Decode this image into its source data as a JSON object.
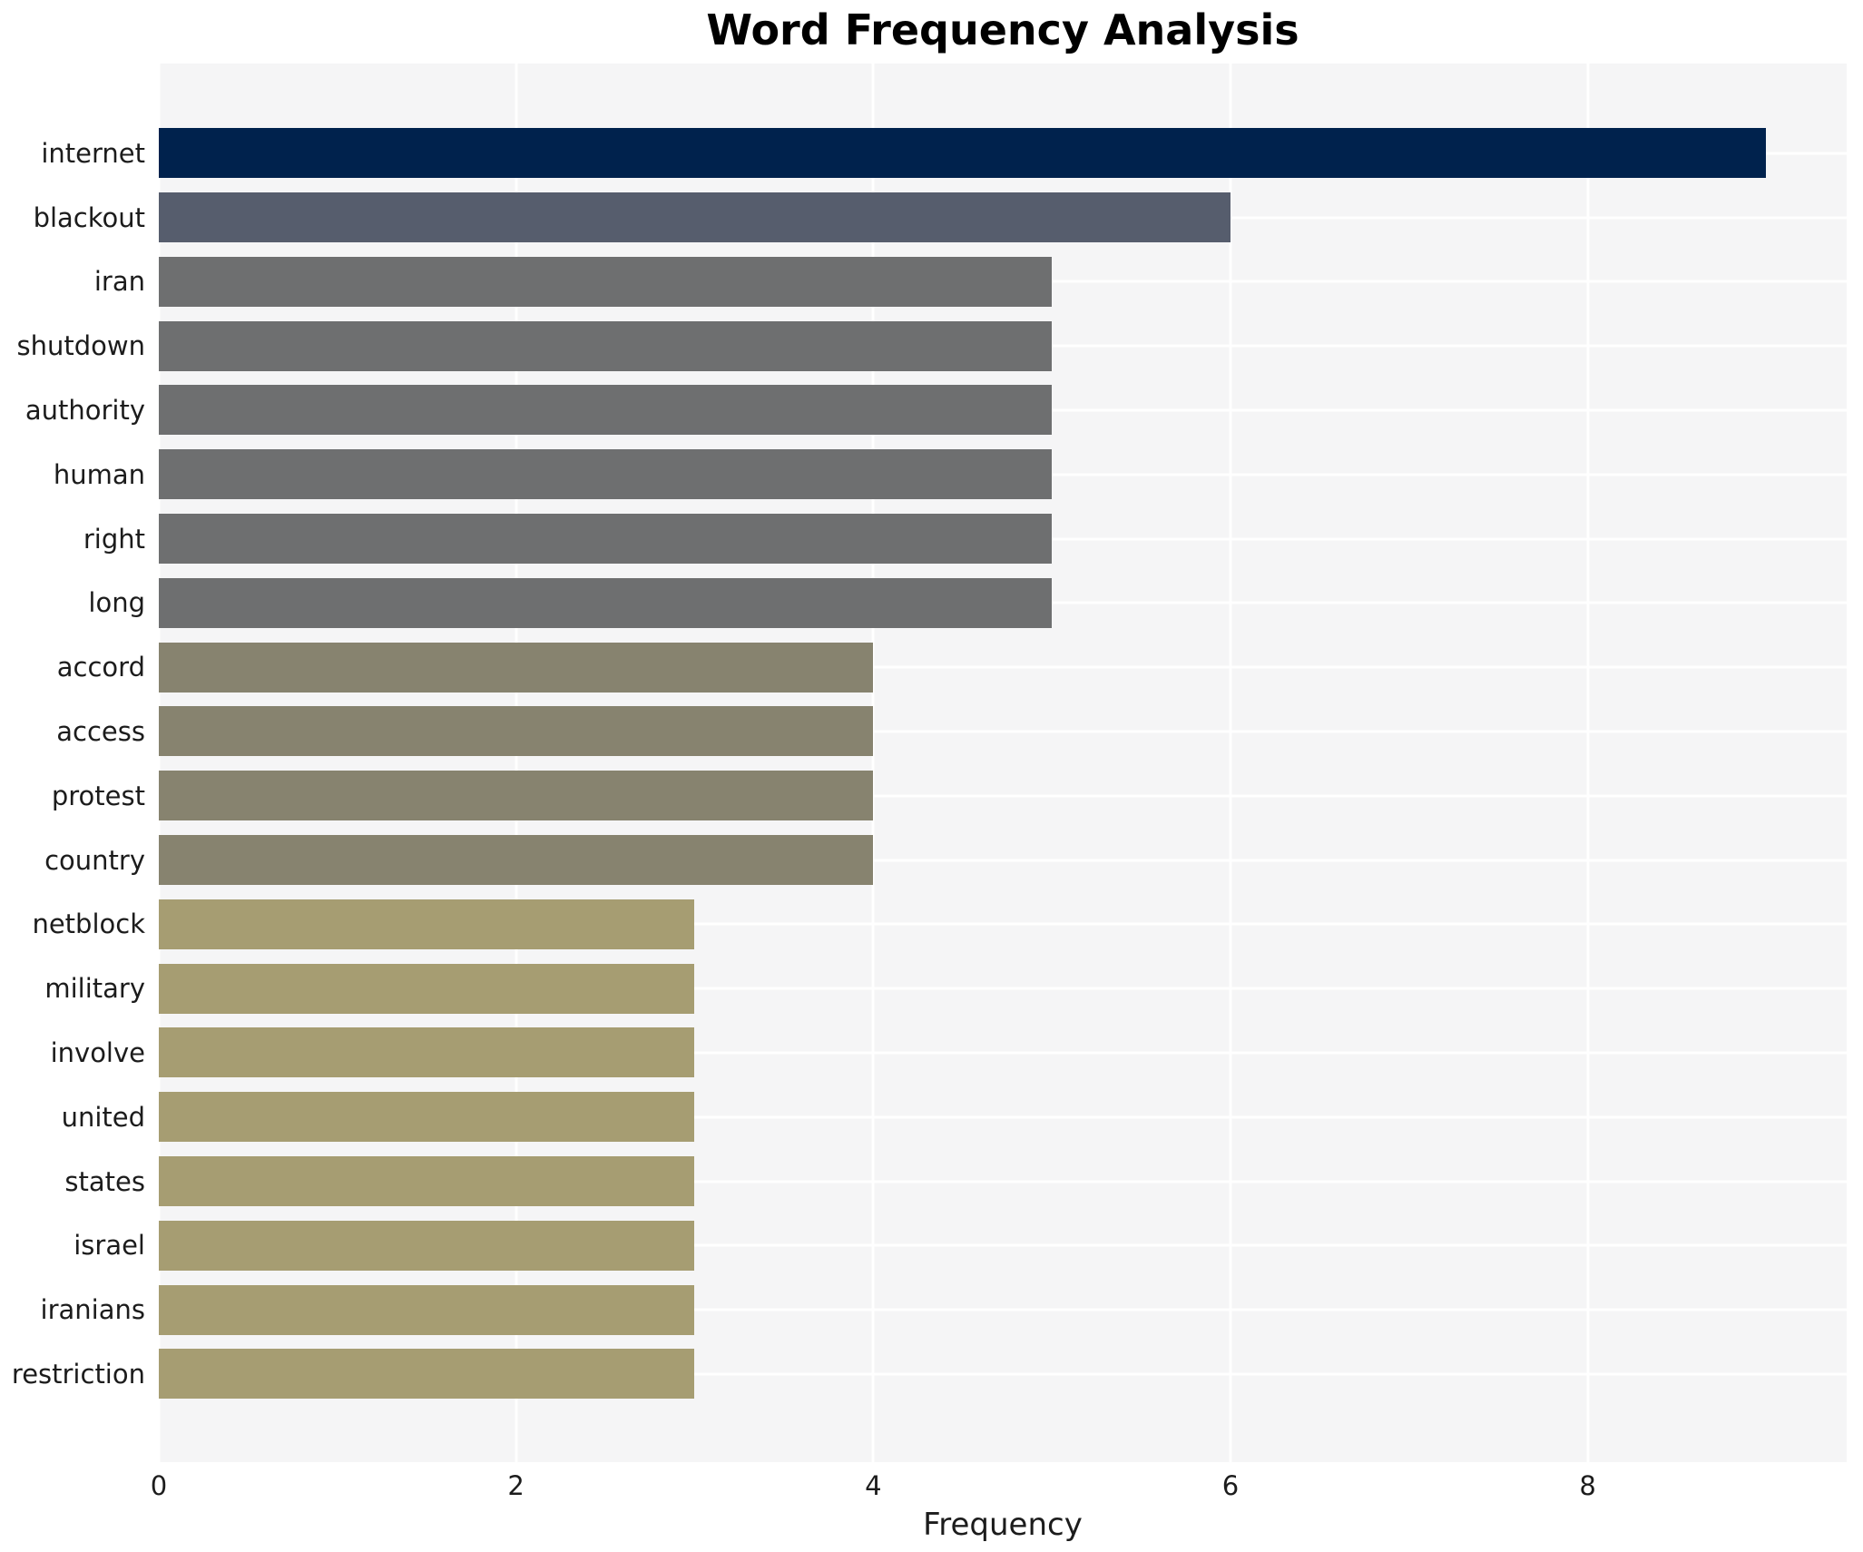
{
  "chart_data": {
    "type": "bar",
    "orientation": "horizontal",
    "title": "Word Frequency Analysis",
    "xlabel": "Frequency",
    "ylabel": "",
    "categories": [
      "internet",
      "blackout",
      "iran",
      "shutdown",
      "authority",
      "human",
      "right",
      "long",
      "accord",
      "access",
      "protest",
      "country",
      "netblock",
      "military",
      "involve",
      "united",
      "states",
      "israel",
      "iranians",
      "restriction"
    ],
    "values": [
      9,
      6,
      5,
      5,
      5,
      5,
      5,
      5,
      4,
      4,
      4,
      4,
      3,
      3,
      3,
      3,
      3,
      3,
      3,
      3
    ],
    "bar_colors": [
      "#00224d",
      "#565d6d",
      "#6e6f70",
      "#6e6f70",
      "#6e6f70",
      "#6e6f70",
      "#6e6f70",
      "#6e6f70",
      "#87836f",
      "#87836f",
      "#87836f",
      "#87836f",
      "#a69d72",
      "#a69d72",
      "#a69d72",
      "#a69d72",
      "#a69d72",
      "#a69d72",
      "#a69d72",
      "#a69d72"
    ],
    "xlim": [
      0,
      9.45
    ],
    "xticks": [
      0,
      2,
      4,
      6,
      8
    ],
    "grid": "white gridlines on light gray plot background, vertical at xticks and horizontal at category centers",
    "legend": "none",
    "plot_bg_color": "#f5f5f6",
    "grid_color": "#ffffff",
    "text_color": "#1c1c1c",
    "title_color": "#000000"
  }
}
